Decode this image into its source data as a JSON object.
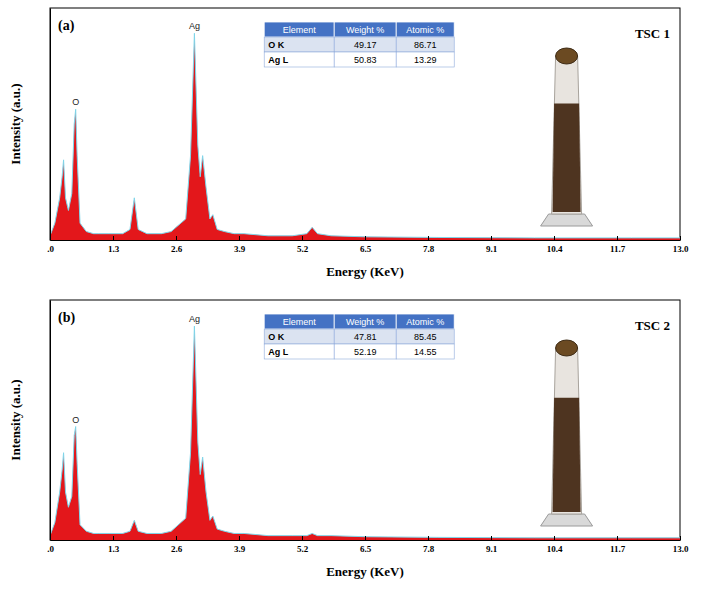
{
  "chart_data": [
    {
      "type": "area",
      "label": "(a)",
      "title": "TSC 1",
      "x_label": "Energy (KeV)",
      "y_label": "Intensity (a.u.)",
      "x": [
        0,
        0.1,
        0.2,
        0.25,
        0.28,
        0.32,
        0.38,
        0.45,
        0.5,
        0.53,
        0.56,
        0.62,
        0.75,
        0.9,
        1.0,
        1.2,
        1.5,
        1.65,
        1.74,
        1.82,
        2.0,
        2.3,
        2.5,
        2.6,
        2.7,
        2.8,
        2.9,
        2.98,
        3.05,
        3.1,
        3.15,
        3.22,
        3.3,
        3.36,
        3.45,
        3.6,
        3.8,
        4.0,
        4.5,
        5.0,
        5.3,
        5.41,
        5.52,
        5.8,
        6.5,
        8,
        10,
        12,
        13
      ],
      "values": [
        2,
        8,
        20,
        30,
        38,
        20,
        14,
        22,
        55,
        62,
        40,
        8,
        4,
        3,
        3,
        3,
        3,
        5,
        20,
        5,
        3,
        3,
        4,
        6,
        8,
        10,
        40,
        98,
        45,
        30,
        40,
        25,
        10,
        12,
        5,
        4,
        3,
        3,
        2,
        2,
        3,
        6,
        3,
        2,
        1.5,
        1.2,
        1,
        1,
        1
      ],
      "color": "#e3171b",
      "xlim": [
        0,
        13
      ],
      "ylim": [
        0,
        110
      ],
      "xticks": [
        {
          "value": 0,
          "label": ".0"
        },
        1.3,
        2.6,
        3.9,
        5.2,
        6.5,
        7.8,
        9.1,
        10.4,
        11.7,
        {
          "value": 13,
          "label": "13.0"
        }
      ],
      "tick_labels": "x",
      "annotations": [
        {
          "text": "O",
          "x": 0.53
        },
        {
          "text": "Ag",
          "x": 2.98
        }
      ],
      "table": {
        "header": [
          "Element",
          "Weight %",
          "Atomic %"
        ],
        "rows": [
          [
            "O K",
            49.17,
            86.71
          ],
          [
            "Ag L",
            50.83,
            13.29
          ]
        ]
      }
    },
    {
      "type": "area",
      "label": "(b)",
      "title": "TSC 2",
      "x_label": "Energy (KeV)",
      "y_label": "Intensity (a.u.)",
      "x": [
        0,
        0.1,
        0.2,
        0.25,
        0.28,
        0.32,
        0.38,
        0.45,
        0.5,
        0.53,
        0.56,
        0.62,
        0.75,
        0.9,
        1.0,
        1.2,
        1.5,
        1.65,
        1.74,
        1.82,
        2.0,
        2.3,
        2.5,
        2.6,
        2.7,
        2.8,
        2.9,
        2.98,
        3.05,
        3.1,
        3.15,
        3.22,
        3.3,
        3.36,
        3.45,
        3.6,
        3.8,
        4.0,
        4.5,
        5.0,
        5.3,
        5.41,
        5.52,
        5.8,
        6.5,
        8,
        10,
        12,
        13
      ],
      "values": [
        2,
        8,
        22,
        32,
        40,
        22,
        15,
        20,
        48,
        52,
        35,
        7,
        4,
        3,
        3,
        3,
        3,
        4,
        9,
        4,
        3,
        3,
        4,
        6,
        8,
        10,
        40,
        98,
        45,
        30,
        38,
        22,
        9,
        11,
        5,
        4,
        3,
        3,
        2,
        2,
        2,
        3,
        2,
        2,
        1.5,
        1.2,
        1,
        1,
        1
      ],
      "color": "#e3171b",
      "xlim": [
        0,
        13
      ],
      "ylim": [
        0,
        110
      ],
      "xticks": [
        {
          "value": 0,
          "label": ".0"
        },
        1.3,
        2.6,
        3.9,
        5.2,
        6.5,
        7.8,
        9.1,
        10.4,
        11.7,
        {
          "value": 13,
          "label": "13.0"
        }
      ],
      "tick_labels": "x",
      "annotations": [
        {
          "text": "O",
          "x": 0.53
        },
        {
          "text": "Ag",
          "x": 2.98
        }
      ],
      "table": {
        "header": [
          "Element",
          "Weight %",
          "Atomic %"
        ],
        "rows": [
          [
            "O K",
            47.81,
            85.45
          ],
          [
            "Ag L",
            52.19,
            14.55
          ]
        ]
      }
    }
  ]
}
